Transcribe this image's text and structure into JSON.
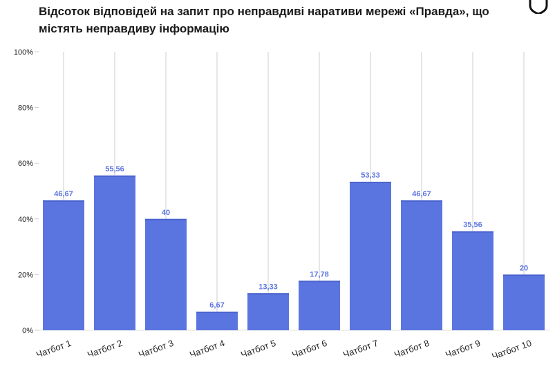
{
  "chart_data": {
    "type": "bar",
    "title": "Відсоток відповідей на запит про неправдиві наративи мережі «Правда», що містять неправдиву інформацію",
    "categories": [
      "Чатбот 1",
      "Чатбот 2",
      "Чатбот 3",
      "Чатбот 4",
      "Чатбот 5",
      "Чатбот 6",
      "Чатбот 7",
      "Чатбот 8",
      "Чатбот 9",
      "Чатбот 10"
    ],
    "values": [
      46.67,
      55.56,
      40,
      6.67,
      13.33,
      17.78,
      53.33,
      46.67,
      35.56,
      20
    ],
    "value_labels": [
      "46,67",
      "55,56",
      "40",
      "6,67",
      "13,33",
      "17,78",
      "53,33",
      "46,67",
      "35,56",
      "20"
    ],
    "y_ticks": [
      0,
      20,
      40,
      60,
      80,
      100
    ],
    "y_tick_labels": [
      "0%",
      "20%",
      "40%",
      "60%",
      "80%",
      "100%"
    ],
    "ylim": [
      0,
      100
    ],
    "xlabel": "",
    "ylabel": "",
    "grid": "vertical",
    "bar_color": "#5b75e0",
    "label_color": "#5b75e0",
    "grid_color": "#e6e6e6"
  },
  "logo": {
    "icon": "shield-icon"
  }
}
